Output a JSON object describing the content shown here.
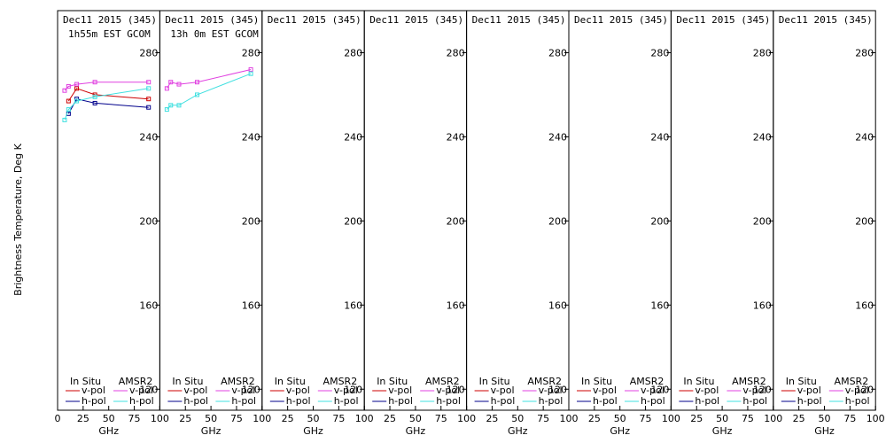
{
  "chart_data": {
    "type": "line",
    "ylabel": "Brightness Temperature, Deg K",
    "xlabel": "GHz",
    "xlim": [
      0,
      100
    ],
    "ylim": [
      110,
      300
    ],
    "xticks": [
      0,
      25,
      50,
      75,
      100
    ],
    "yticks": [
      120,
      160,
      200,
      240,
      280
    ],
    "legend": {
      "in_situ_title": "In Situ",
      "amsr2_title": "AMSR2",
      "v_pol": "v-pol",
      "h_pol": "h-pol"
    },
    "colors": {
      "in_situ_v": "#cc0000",
      "in_situ_h": "#00008b",
      "amsr2_v": "#e040e0",
      "amsr2_h": "#40e0e0"
    },
    "panels": [
      {
        "date": "Dec11 2015 (345)",
        "subtitle": "1h55m EST GCOM",
        "series": [
          {
            "x": [
              10.7,
              18.7,
              36.5,
              89
            ],
            "y": [
              257,
              263,
              260,
              258
            ]
          },
          {
            "x": [
              10.7,
              18.7,
              36.5,
              89
            ],
            "y": [
              251,
              258,
              256,
              254
            ]
          },
          {
            "x": [
              6.9,
              10.7,
              18.7,
              36.5,
              89
            ],
            "y": [
              262,
              264,
              265,
              266,
              266
            ]
          },
          {
            "x": [
              6.9,
              10.7,
              18.7,
              36.5,
              89
            ],
            "y": [
              248,
              253,
              257,
              259,
              263
            ]
          }
        ]
      },
      {
        "date": "Dec11 2015 (345)",
        "subtitle": "13h 0m EST GCOM",
        "series": [
          {
            "x": [],
            "y": []
          },
          {
            "x": [],
            "y": []
          },
          {
            "x": [
              6.9,
              10.7,
              18.7,
              36.5,
              89
            ],
            "y": [
              263,
              266,
              265,
              266,
              272
            ]
          },
          {
            "x": [
              6.9,
              10.7,
              18.7,
              36.5,
              89
            ],
            "y": [
              253,
              255,
              255,
              260,
              270
            ]
          }
        ]
      },
      {
        "date": "Dec11 2015 (345)",
        "subtitle": "",
        "series": []
      },
      {
        "date": "Dec11 2015 (345)",
        "subtitle": "",
        "series": []
      },
      {
        "date": "Dec11 2015 (345)",
        "subtitle": "",
        "series": []
      },
      {
        "date": "Dec11 2015 (345)",
        "subtitle": "",
        "series": []
      },
      {
        "date": "Dec11 2015 (345)",
        "subtitle": "",
        "series": []
      },
      {
        "date": "Dec11 2015 (345)",
        "subtitle": "",
        "series": []
      }
    ]
  }
}
